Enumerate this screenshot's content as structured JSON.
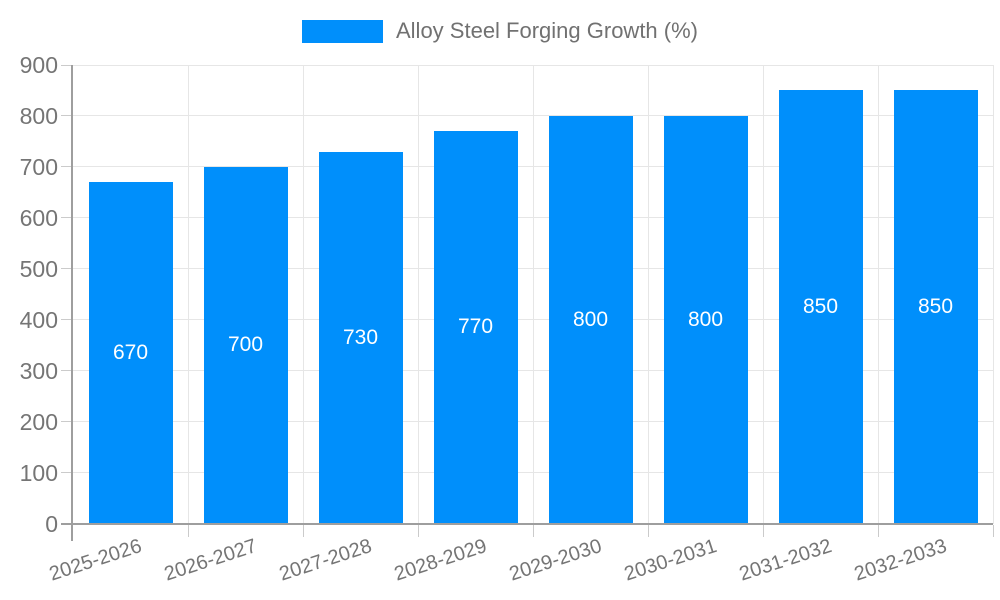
{
  "legend": {
    "label": "Alloy Steel Forging Growth (%)"
  },
  "chart_data": {
    "type": "bar",
    "title": "",
    "categories": [
      "2025-2026",
      "2026-2027",
      "2027-2028",
      "2028-2029",
      "2029-2030",
      "2030-2031",
      "2031-2032",
      "2032-2033"
    ],
    "series": [
      {
        "name": "Alloy Steel Forging Growth (%)",
        "values": [
          670,
          700,
          730,
          770,
          800,
          800,
          850,
          850
        ]
      }
    ],
    "value_labels_shown": true,
    "xlabel": "",
    "ylabel": "",
    "ylim": [
      0,
      900
    ],
    "ytick_step": 100,
    "grid": true,
    "legend_position": "top-center",
    "colors": {
      "bar": "#008FFB",
      "axis": "#9E9E9E",
      "grid": "#E6E6E6",
      "tick": "#CBCBCB",
      "axis_label": "#757575",
      "value_label": "#FFFFFF",
      "legend_text": "#717171",
      "background": "#FFFFFF"
    }
  }
}
